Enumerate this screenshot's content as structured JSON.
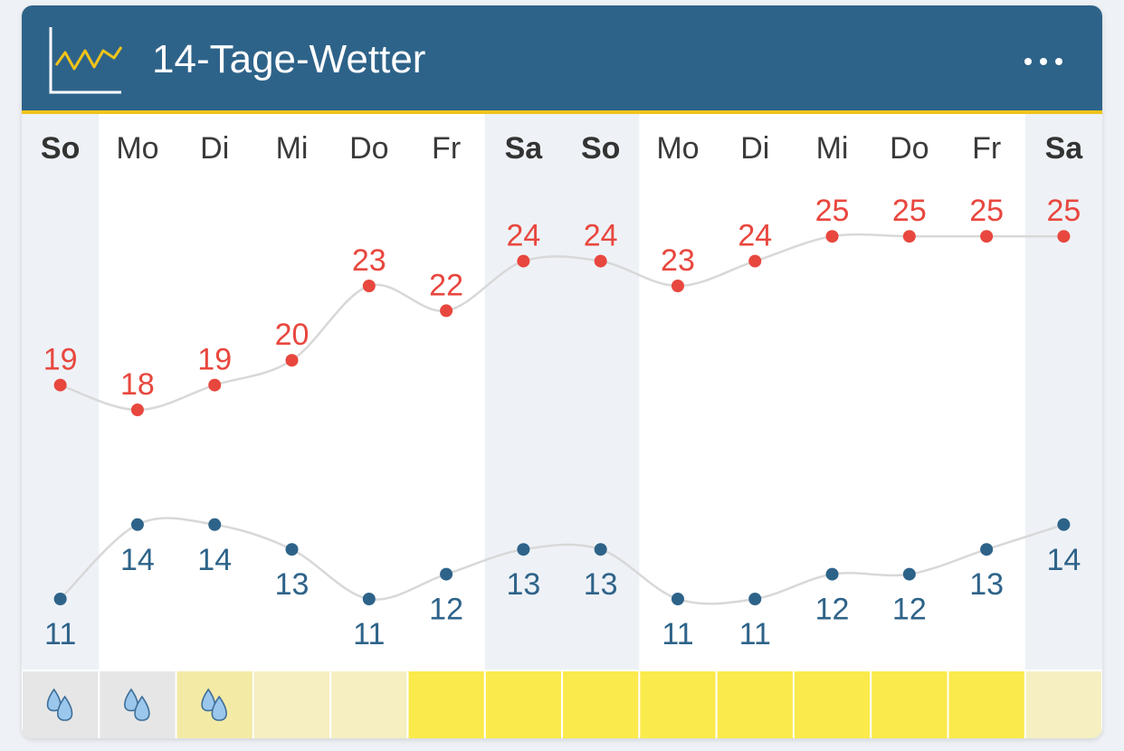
{
  "header": {
    "title": "14-Tage-Wetter",
    "icon": "chart-line-icon",
    "menu_icon": "more-horizontal-icon"
  },
  "colors": {
    "header_bg": "#2e6389",
    "accent": "#f0c419",
    "max_temp": "#e8473e",
    "min_temp": "#2e6389",
    "weekend_bg": "#eef2f7",
    "curve": "#d8d8d8"
  },
  "days": [
    {
      "label": "So",
      "weekend": true,
      "max": 19,
      "min": 11,
      "weather": "rain",
      "tile": "#e6e6e6"
    },
    {
      "label": "Mo",
      "weekend": false,
      "max": 18,
      "min": 14,
      "weather": "rain",
      "tile": "#e6e6e6"
    },
    {
      "label": "Di",
      "weekend": false,
      "max": 19,
      "min": 14,
      "weather": "rain",
      "tile": "#f3eaa6"
    },
    {
      "label": "Mi",
      "weekend": false,
      "max": 20,
      "min": 13,
      "weather": "none",
      "tile": "#f5efc2"
    },
    {
      "label": "Do",
      "weekend": false,
      "max": 23,
      "min": 11,
      "weather": "none",
      "tile": "#f5efc2"
    },
    {
      "label": "Fr",
      "weekend": false,
      "max": 22,
      "min": 12,
      "weather": "none",
      "tile": "#fbea4c"
    },
    {
      "label": "Sa",
      "weekend": true,
      "max": 24,
      "min": 13,
      "weather": "none",
      "tile": "#fbea4c"
    },
    {
      "label": "So",
      "weekend": true,
      "max": 24,
      "min": 13,
      "weather": "none",
      "tile": "#fbea4c"
    },
    {
      "label": "Mo",
      "weekend": false,
      "max": 23,
      "min": 11,
      "weather": "none",
      "tile": "#fbea4c"
    },
    {
      "label": "Di",
      "weekend": false,
      "max": 24,
      "min": 11,
      "weather": "none",
      "tile": "#fbea4c"
    },
    {
      "label": "Mi",
      "weekend": false,
      "max": 25,
      "min": 12,
      "weather": "none",
      "tile": "#fbea4c"
    },
    {
      "label": "Do",
      "weekend": false,
      "max": 25,
      "min": 12,
      "weather": "none",
      "tile": "#fbea4c"
    },
    {
      "label": "Fr",
      "weekend": false,
      "max": 25,
      "min": 13,
      "weather": "none",
      "tile": "#fbea4c"
    },
    {
      "label": "Sa",
      "weekend": true,
      "max": 25,
      "min": 14,
      "weather": "none",
      "tile": "#f5efc2"
    }
  ]
}
